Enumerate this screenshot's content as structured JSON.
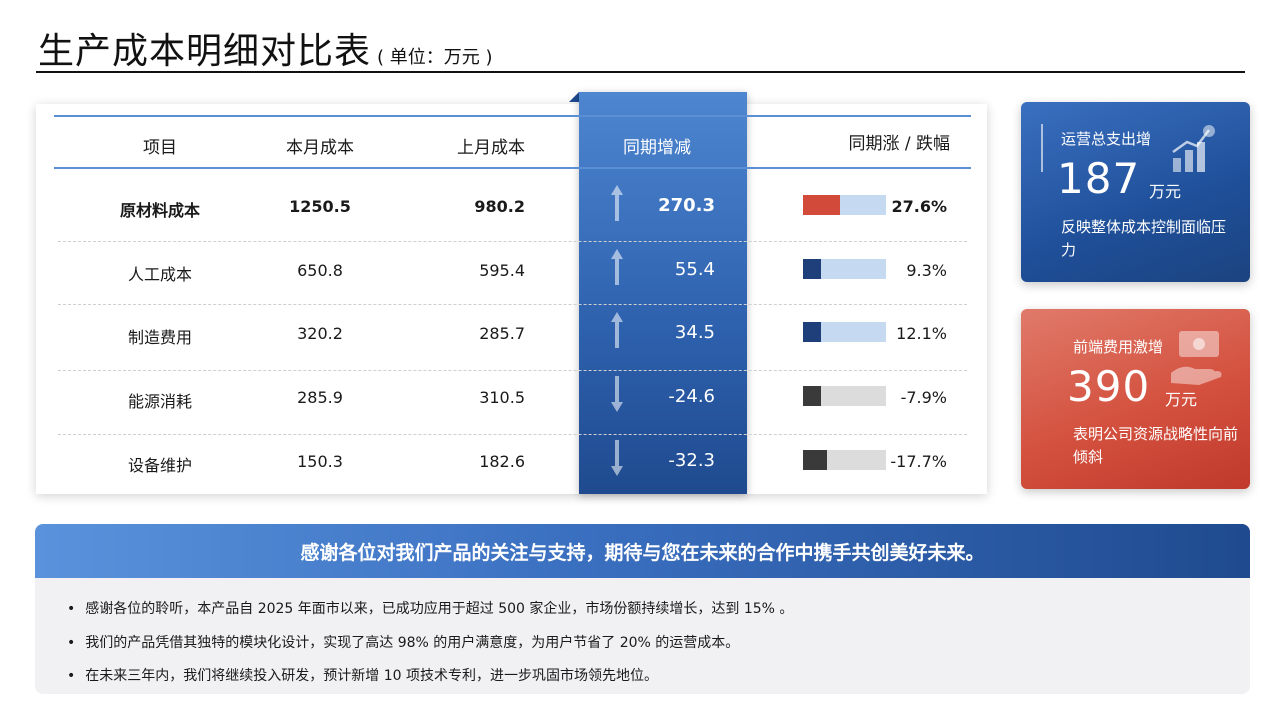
{
  "title": {
    "main": "生产成本明细对比表",
    "sub": "( 单位：万元 )"
  },
  "table": {
    "headers": {
      "item": "项目",
      "current": "本月成本",
      "previous": "上月成本",
      "diff": "同期增减",
      "pct": "同期涨 / 跌幅"
    },
    "rows": [
      {
        "item": "原材料成本",
        "current": "1250.5",
        "previous": "980.2",
        "diff": "270.3",
        "pct": "27.6%",
        "direction": "up",
        "pct_value": 0.276,
        "bar_color": "#d24a3a"
      },
      {
        "item": "人工成本",
        "current": "650.8",
        "previous": "595.4",
        "diff": "55.4",
        "pct": "9.3%",
        "direction": "up",
        "pct_value": 0.093,
        "bar_color": "#1f3f7a"
      },
      {
        "item": "制造费用",
        "current": "320.2",
        "previous": "285.7",
        "diff": "34.5",
        "pct": "12.1%",
        "direction": "up",
        "pct_value": 0.121,
        "bar_color": "#1f3f7a"
      },
      {
        "item": "能源消耗",
        "current": "285.9",
        "previous": "310.5",
        "diff": "-24.6",
        "pct": "-7.9%",
        "direction": "down",
        "pct_value": -0.079,
        "bar_color": "#3a3a3a"
      },
      {
        "item": "设备维护",
        "current": "150.3",
        "previous": "182.6",
        "diff": "-32.3",
        "pct": "-17.7%",
        "direction": "down",
        "pct_value": -0.177,
        "bar_color": "#3a3a3a"
      }
    ]
  },
  "kpis": [
    {
      "label": "运营总支出增",
      "value": "187",
      "unit": "万元",
      "desc": "反映整体成本控制面临压力",
      "icon": "growth-chart-icon",
      "color": "#1f4f99"
    },
    {
      "label": "前端费用激增",
      "value": "390",
      "unit": "万元",
      "desc": "表明公司资源战略性向前倾斜",
      "icon": "money-hand-icon",
      "color": "#d4513f"
    }
  ],
  "banner": {
    "text": "感谢各位对我们产品的关注与支持，期待与您在未来的合作中携手共创美好未来。"
  },
  "notes": [
    "感谢各位的聆听，本产品自 2025 年面市以来，已成功应用于超过 500 家企业，市场份额持续增长，达到 15% 。",
    "我们的产品凭借其独特的模块化设计，实现了高达 98% 的用户满意度，为用户节省了 20% 的运营成本。",
    "在未来三年内，我们将继续投入研发，预计新增 10 项技术专利，进一步巩固市场领先地位。"
  ],
  "colors": {
    "accent_blue": "#2f63b0",
    "accent_red": "#d24a3a",
    "bar_bg_up": "#c5d9f1",
    "bar_bg_down": "#dcdcdc"
  }
}
